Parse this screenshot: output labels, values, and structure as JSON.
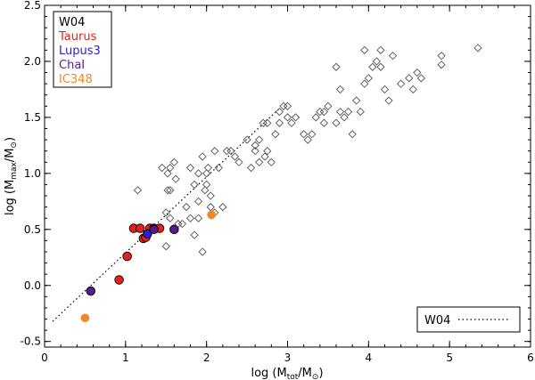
{
  "chart_data": {
    "type": "scatter",
    "xlabel": "log (M_tot/M_⊙)",
    "ylabel": "log (M_max/M_⊙)",
    "xlabel_parts": {
      "prefix": "log (M",
      "sub": "tot",
      "mid": "/M",
      "sym": "⊙",
      "suffix": ")"
    },
    "ylabel_parts": {
      "prefix": "log (M",
      "sub": "max",
      "mid": "/M",
      "sym": "⊙",
      "suffix": ")"
    },
    "xlim": [
      0,
      6
    ],
    "ylim": [
      -0.55,
      2.5
    ],
    "xticks": [
      0,
      1,
      2,
      3,
      4,
      5,
      6
    ],
    "xtick_labels": [
      "0",
      "1",
      "2",
      "3",
      "4",
      "5",
      "6"
    ],
    "yticks": [
      -0.5,
      0.0,
      0.5,
      1.0,
      1.5,
      2.0,
      2.5
    ],
    "ytick_labels": [
      "-0.5",
      "0.0",
      "0.5",
      "1.0",
      "1.5",
      "2.0",
      "2.5"
    ],
    "legend": {
      "placement": "top-left",
      "entries": [
        {
          "label": "W04",
          "color": "#000000"
        },
        {
          "label": "Taurus",
          "color": "#e8201c"
        },
        {
          "label": "Lupus3",
          "color": "#2a1fd6"
        },
        {
          "label": "ChaI",
          "color": "#5a1a8c"
        },
        {
          "label": "IC348",
          "color": "#f4861f"
        }
      ]
    },
    "line_legend": {
      "placement": "bottom-right",
      "label": "W04",
      "style": "dotted"
    },
    "relation_line": {
      "name": "W04",
      "style": "dotted",
      "points": [
        [
          0.1,
          -0.32
        ],
        [
          2.9,
          1.58
        ]
      ]
    },
    "series": [
      {
        "name": "W04",
        "marker": "diamond-open",
        "color": "#000000",
        "points": [
          [
            1.15,
            0.85
          ],
          [
            1.35,
            0.5
          ],
          [
            1.45,
            1.05
          ],
          [
            1.5,
            0.65
          ],
          [
            1.5,
            0.35
          ],
          [
            1.52,
            1.0
          ],
          [
            1.52,
            0.85
          ],
          [
            1.55,
            0.6
          ],
          [
            1.55,
            1.05
          ],
          [
            1.55,
            0.85
          ],
          [
            1.6,
            1.1
          ],
          [
            1.62,
            0.95
          ],
          [
            1.65,
            0.55
          ],
          [
            1.7,
            0.55
          ],
          [
            1.75,
            0.7
          ],
          [
            1.8,
            0.6
          ],
          [
            1.8,
            1.05
          ],
          [
            1.85,
            0.9
          ],
          [
            1.85,
            0.45
          ],
          [
            1.9,
            1.0
          ],
          [
            1.9,
            0.75
          ],
          [
            1.9,
            0.6
          ],
          [
            1.95,
            1.15
          ],
          [
            1.95,
            0.3
          ],
          [
            1.98,
            0.85
          ],
          [
            2.0,
            1.0
          ],
          [
            2.0,
            0.9
          ],
          [
            2.02,
            1.05
          ],
          [
            2.05,
            0.8
          ],
          [
            2.05,
            0.7
          ],
          [
            2.1,
            0.65
          ],
          [
            2.1,
            1.2
          ],
          [
            2.15,
            1.05
          ],
          [
            2.2,
            0.7
          ],
          [
            2.25,
            1.2
          ],
          [
            2.3,
            1.2
          ],
          [
            2.35,
            1.15
          ],
          [
            2.4,
            1.1
          ],
          [
            2.5,
            1.3
          ],
          [
            2.55,
            1.05
          ],
          [
            2.6,
            1.2
          ],
          [
            2.6,
            1.25
          ],
          [
            2.65,
            1.3
          ],
          [
            2.65,
            1.1
          ],
          [
            2.7,
            1.45
          ],
          [
            2.72,
            1.15
          ],
          [
            2.75,
            1.2
          ],
          [
            2.75,
            1.45
          ],
          [
            2.8,
            1.1
          ],
          [
            2.85,
            1.35
          ],
          [
            2.9,
            1.45
          ],
          [
            2.9,
            1.55
          ],
          [
            2.95,
            1.6
          ],
          [
            3.0,
            1.6
          ],
          [
            3.0,
            1.5
          ],
          [
            3.05,
            1.45
          ],
          [
            3.1,
            1.5
          ],
          [
            3.2,
            1.35
          ],
          [
            3.25,
            1.3
          ],
          [
            3.3,
            1.35
          ],
          [
            3.35,
            1.5
          ],
          [
            3.4,
            1.55
          ],
          [
            3.45,
            1.55
          ],
          [
            3.45,
            1.45
          ],
          [
            3.5,
            1.6
          ],
          [
            3.6,
            1.45
          ],
          [
            3.65,
            1.75
          ],
          [
            3.65,
            1.55
          ],
          [
            3.7,
            1.5
          ],
          [
            3.75,
            1.55
          ],
          [
            3.8,
            1.35
          ],
          [
            3.85,
            1.65
          ],
          [
            3.9,
            1.55
          ],
          [
            3.95,
            1.8
          ],
          [
            4.0,
            1.85
          ],
          [
            4.05,
            1.95
          ],
          [
            4.1,
            2.0
          ],
          [
            4.15,
            1.95
          ],
          [
            4.2,
            1.75
          ],
          [
            4.25,
            1.65
          ],
          [
            4.3,
            2.05
          ],
          [
            4.4,
            1.8
          ],
          [
            4.5,
            1.85
          ],
          [
            4.55,
            1.75
          ],
          [
            4.6,
            1.9
          ],
          [
            4.65,
            1.85
          ],
          [
            3.6,
            1.95
          ],
          [
            3.95,
            2.1
          ],
          [
            4.15,
            2.1
          ],
          [
            4.9,
            2.05
          ],
          [
            4.9,
            1.97
          ],
          [
            5.35,
            2.12
          ]
        ]
      },
      {
        "name": "Taurus",
        "marker": "circle-filled",
        "color": "#e8201c",
        "points": [
          [
            0.92,
            0.05
          ],
          [
            1.02,
            0.26
          ],
          [
            1.1,
            0.51
          ],
          [
            1.18,
            0.51
          ],
          [
            1.22,
            0.42
          ],
          [
            1.25,
            0.43
          ],
          [
            1.3,
            0.51
          ],
          [
            1.35,
            0.51
          ],
          [
            1.42,
            0.51
          ]
        ]
      },
      {
        "name": "Lupus3",
        "marker": "circle-filled",
        "color": "#2a1fd6",
        "points": [
          [
            1.27,
            0.46
          ]
        ]
      },
      {
        "name": "ChaI",
        "marker": "circle-filled",
        "color": "#5a1a8c",
        "points": [
          [
            0.57,
            -0.05
          ],
          [
            1.35,
            0.5
          ],
          [
            1.6,
            0.5
          ]
        ]
      },
      {
        "name": "IC348",
        "marker": "circle-filled",
        "color": "#f4861f",
        "points": [
          [
            0.5,
            -0.29
          ],
          [
            2.06,
            0.63
          ]
        ]
      }
    ]
  }
}
